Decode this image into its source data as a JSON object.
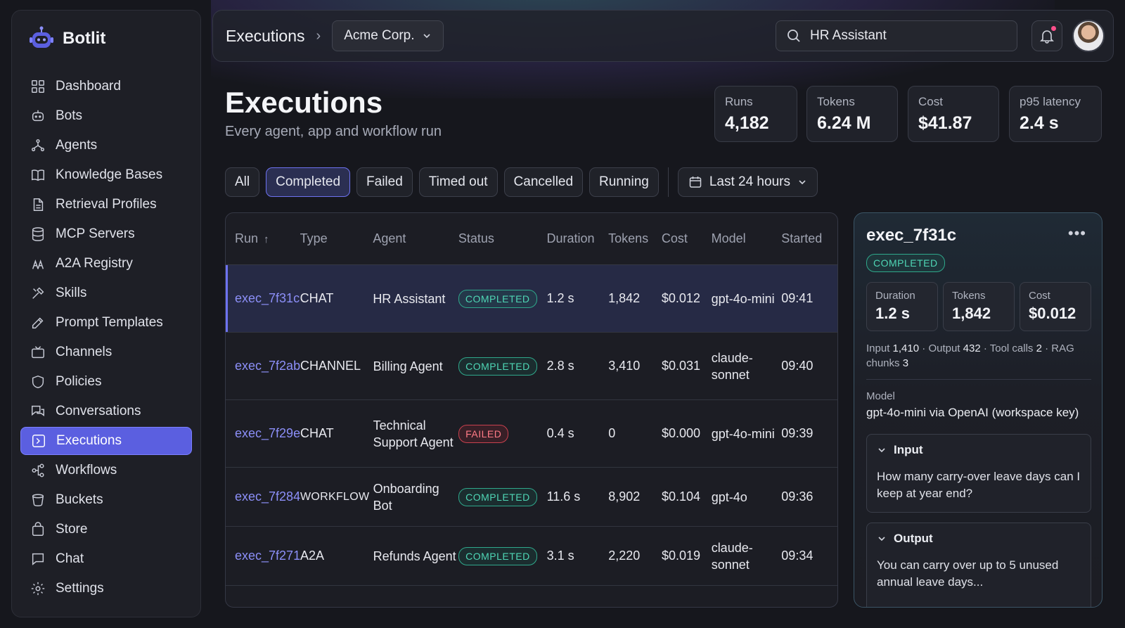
{
  "app": {
    "name": "Botlit"
  },
  "sidebar": {
    "items": [
      {
        "label": "Dashboard",
        "icon": "grid-icon"
      },
      {
        "label": "Bots",
        "icon": "bot-icon"
      },
      {
        "label": "Agents",
        "icon": "agents-icon"
      },
      {
        "label": "Knowledge Bases",
        "icon": "book-icon"
      },
      {
        "label": "Retrieval Profiles",
        "icon": "document-icon"
      },
      {
        "label": "MCP Servers",
        "icon": "database-icon"
      },
      {
        "label": "A2A Registry",
        "icon": "registry-icon"
      },
      {
        "label": "Skills",
        "icon": "tools-icon"
      },
      {
        "label": "Prompt Templates",
        "icon": "edit-icon"
      },
      {
        "label": "Channels",
        "icon": "tv-icon"
      },
      {
        "label": "Policies",
        "icon": "shield-icon"
      },
      {
        "label": "Conversations",
        "icon": "chat-bubbles-icon"
      },
      {
        "label": "Executions",
        "icon": "terminal-icon",
        "active": true
      },
      {
        "label": "Workflows",
        "icon": "workflow-icon"
      },
      {
        "label": "Buckets",
        "icon": "bucket-icon"
      },
      {
        "label": "Store",
        "icon": "bag-icon"
      },
      {
        "label": "Chat",
        "icon": "chat-icon"
      },
      {
        "label": "Settings",
        "icon": "gear-icon"
      }
    ]
  },
  "topbar": {
    "breadcrumb": "Executions",
    "org": "Acme Corp.",
    "search_value": "HR Assistant"
  },
  "header": {
    "title": "Executions",
    "subtitle": "Every agent, app and workflow run"
  },
  "stats": [
    {
      "label": "Runs",
      "value": "4,182"
    },
    {
      "label": "Tokens",
      "value": "6.24 M"
    },
    {
      "label": "Cost",
      "value": "$41.87"
    },
    {
      "label": "p95 latency",
      "value": "2.4 s"
    }
  ],
  "filters": {
    "chips": [
      "All",
      "Completed",
      "Failed",
      "Timed out",
      "Cancelled",
      "Running"
    ],
    "active": "Completed",
    "date_range": "Last 24 hours"
  },
  "table": {
    "columns": [
      "Run",
      "Type",
      "Agent",
      "Status",
      "Duration",
      "Tokens",
      "Cost",
      "Model",
      "Started"
    ],
    "rows": [
      {
        "run": "exec_7f31c",
        "type": "CHAT",
        "agent": "HR Assistant",
        "status": "COMPLETED",
        "duration": "1.2 s",
        "tokens": "1,842",
        "cost": "$0.012",
        "model": "gpt-4o-mini",
        "started": "09:41"
      },
      {
        "run": "exec_7f2ab",
        "type": "CHANNEL",
        "agent": "Billing Agent",
        "status": "COMPLETED",
        "duration": "2.8 s",
        "tokens": "3,410",
        "cost": "$0.031",
        "model": "claude-sonnet",
        "started": "09:40"
      },
      {
        "run": "exec_7f29e",
        "type": "CHAT",
        "agent": "Technical Support Agent",
        "status": "FAILED",
        "duration": "0.4 s",
        "tokens": "0",
        "cost": "$0.000",
        "model": "gpt-4o-mini",
        "started": "09:39"
      },
      {
        "run": "exec_7f284",
        "type": "WORKFLOW",
        "agent": "Onboarding Bot",
        "status": "COMPLETED",
        "duration": "11.6 s",
        "tokens": "8,902",
        "cost": "$0.104",
        "model": "gpt-4o",
        "started": "09:36"
      },
      {
        "run": "exec_7f271",
        "type": "A2A",
        "agent": "Refunds Agent",
        "status": "COMPLETED",
        "duration": "3.1 s",
        "tokens": "2,220",
        "cost": "$0.019",
        "model": "claude-sonnet",
        "started": "09:34"
      }
    ]
  },
  "detail": {
    "title": "exec_7f31c",
    "status": "COMPLETED",
    "metrics": [
      {
        "label": "Duration",
        "value": "1.2 s"
      },
      {
        "label": "Tokens",
        "value": "1,842"
      },
      {
        "label": "Cost",
        "value": "$0.012"
      }
    ],
    "meta": {
      "input_label": "Input",
      "input": "1,410",
      "output_label": "Output",
      "output": "432",
      "tool_calls_label": "Tool calls",
      "tool_calls": "2",
      "rag_label": "RAG chunks",
      "rag": "3"
    },
    "model_label": "Model",
    "model": "gpt-4o-mini via OpenAI (workspace key)",
    "input_title": "Input",
    "input_text": "How many carry-over leave days can I keep at year end?",
    "output_title": "Output",
    "output_text": "You can carry over up to 5 unused annual leave days..."
  },
  "colors": {
    "accent": "#5b5fe0",
    "success": "#4fd6b5",
    "danger": "#ff7b86",
    "link": "#8c8ff8"
  }
}
